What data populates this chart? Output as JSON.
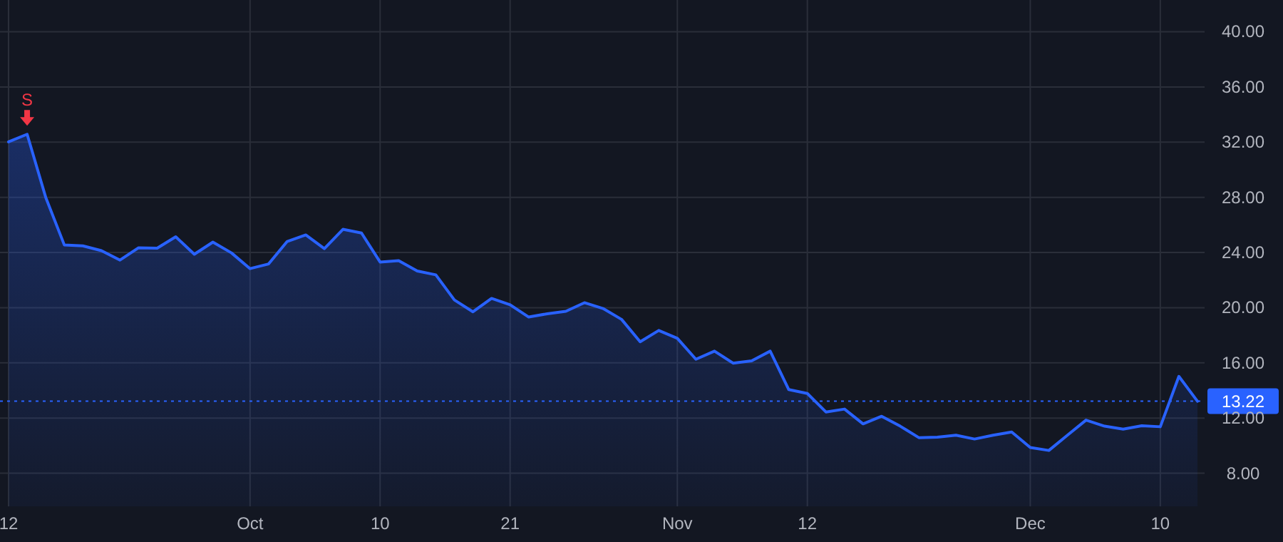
{
  "chart_data": {
    "type": "area",
    "categories": [
      "12",
      null,
      null,
      null,
      null,
      null,
      null,
      null,
      null,
      null,
      null,
      null,
      null,
      "Oct",
      null,
      null,
      null,
      null,
      null,
      null,
      "10",
      null,
      null,
      null,
      null,
      null,
      null,
      "21",
      null,
      null,
      null,
      null,
      null,
      null,
      null,
      null,
      "Nov",
      null,
      null,
      null,
      null,
      null,
      null,
      "12",
      null,
      null,
      null,
      null,
      null,
      null,
      null,
      null,
      null,
      null,
      null,
      "Dec",
      null,
      null,
      null,
      null,
      null,
      null,
      "10",
      null,
      null
    ],
    "series": [
      {
        "color": "#2962ff",
        "values": [
          32.02,
          32.57,
          28.0,
          24.55,
          24.48,
          24.13,
          23.45,
          24.34,
          24.31,
          25.14,
          23.87,
          24.75,
          23.97,
          22.83,
          23.17,
          24.8,
          25.27,
          24.28,
          25.68,
          25.41,
          23.31,
          23.41,
          22.66,
          22.38,
          20.56,
          19.7,
          20.67,
          20.21,
          19.32,
          19.56,
          19.74,
          20.36,
          19.94,
          19.15,
          17.53,
          18.35,
          17.78,
          16.26,
          16.85,
          15.98,
          16.15,
          16.85,
          14.06,
          13.78,
          12.44,
          12.65,
          11.58,
          12.13,
          11.41,
          10.58,
          10.61,
          10.76,
          10.48,
          10.76,
          10.99,
          9.86,
          9.65,
          10.76,
          11.85,
          11.41,
          11.2,
          11.44,
          11.37,
          15.02,
          13.22
        ]
      }
    ],
    "ylim": [
      5.6,
      42.3
    ],
    "yticks": [
      {
        "value": 8,
        "label": "8.00"
      },
      {
        "value": 12,
        "label": "12.00"
      },
      {
        "value": 16,
        "label": "16.00"
      },
      {
        "value": 20,
        "label": "20.00"
      },
      {
        "value": 24,
        "label": "24.00"
      },
      {
        "value": 28,
        "label": "28.00"
      },
      {
        "value": 32,
        "label": "32.00"
      },
      {
        "value": 36,
        "label": "36.00"
      },
      {
        "value": 40,
        "label": "40.00"
      }
    ],
    "grid": true,
    "line_style": "solid",
    "ref_lines": [
      {
        "axis": "y",
        "value": 13.22,
        "label": "13.22",
        "color": "#2962ff",
        "line_style": "dotted"
      }
    ],
    "annotations": [
      {
        "text": "S",
        "y": 32.57
      }
    ]
  }
}
